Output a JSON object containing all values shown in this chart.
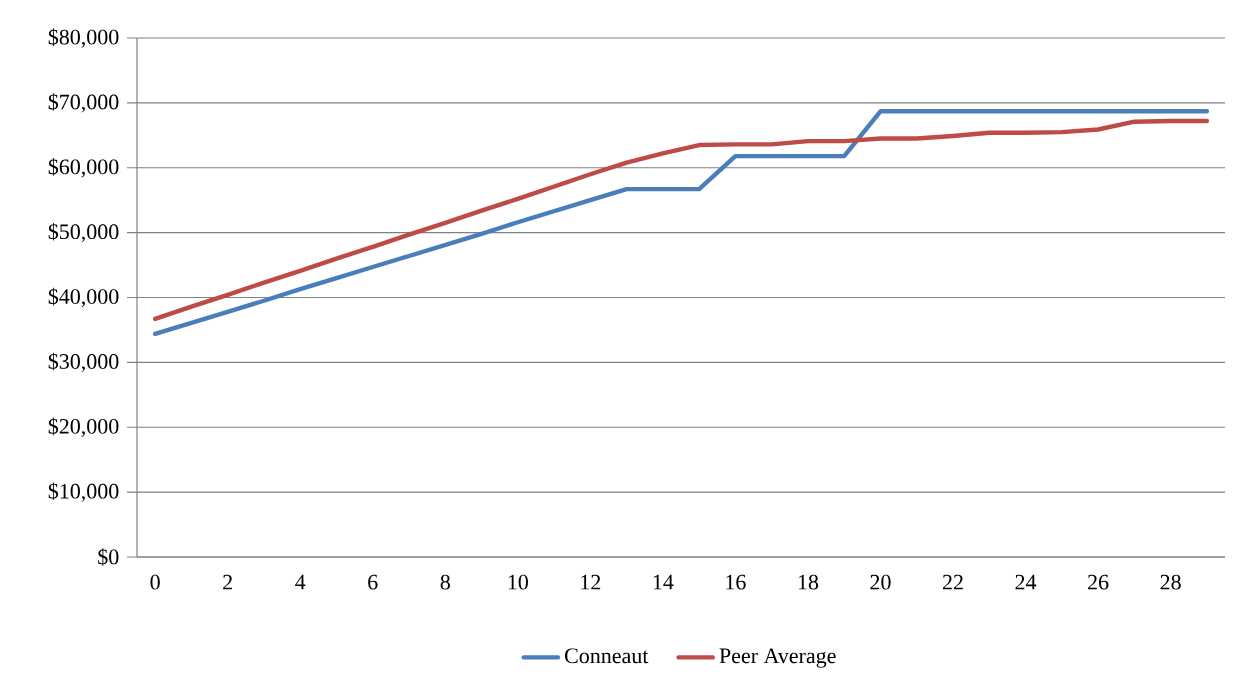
{
  "chart_data": {
    "type": "line",
    "categories": [
      "0",
      null,
      "2",
      null,
      "4",
      null,
      "6",
      null,
      "8",
      null,
      "10",
      null,
      "12",
      null,
      "14",
      null,
      "16",
      null,
      "18",
      null,
      "20",
      null,
      "22",
      null,
      "24",
      null,
      "26",
      null,
      "28",
      null
    ],
    "series": [
      {
        "name": "Conneaut",
        "color": "#4a7ebb",
        "values": [
          34400,
          36100,
          37800,
          39500,
          41300,
          43000,
          44700,
          46400,
          48100,
          49800,
          51600,
          53300,
          55000,
          56700,
          56700,
          56700,
          61800,
          61800,
          61800,
          61800,
          68700,
          68700,
          68700,
          68700,
          68700,
          68700,
          68700,
          68700,
          68700,
          68700
        ]
      },
      {
        "name": "Peer Average",
        "color": "#be4b48",
        "values": [
          36700,
          38600,
          40400,
          42300,
          44100,
          46000,
          47800,
          49700,
          51500,
          53400,
          55200,
          57100,
          59000,
          60800,
          62200,
          63500,
          63600,
          63600,
          64100,
          64100,
          64500,
          64500,
          64900,
          65400,
          65400,
          65500,
          65900,
          67100,
          67200,
          67200
        ]
      }
    ],
    "ylim": [
      0,
      80000
    ],
    "yticks": [
      {
        "value": 0,
        "label": "$0"
      },
      {
        "value": 10000,
        "label": "$10,000"
      },
      {
        "value": 20000,
        "label": "$20,000"
      },
      {
        "value": 30000,
        "label": "$30,000"
      },
      {
        "value": 40000,
        "label": "$40,000"
      },
      {
        "value": 50000,
        "label": "$50,000"
      },
      {
        "value": 60000,
        "label": "$60,000"
      },
      {
        "value": 70000,
        "label": "$70,000"
      },
      {
        "value": 80000,
        "label": "$80,000"
      }
    ],
    "grid": "y",
    "legend": "bottom",
    "marker": "none",
    "line_style": "solid"
  }
}
